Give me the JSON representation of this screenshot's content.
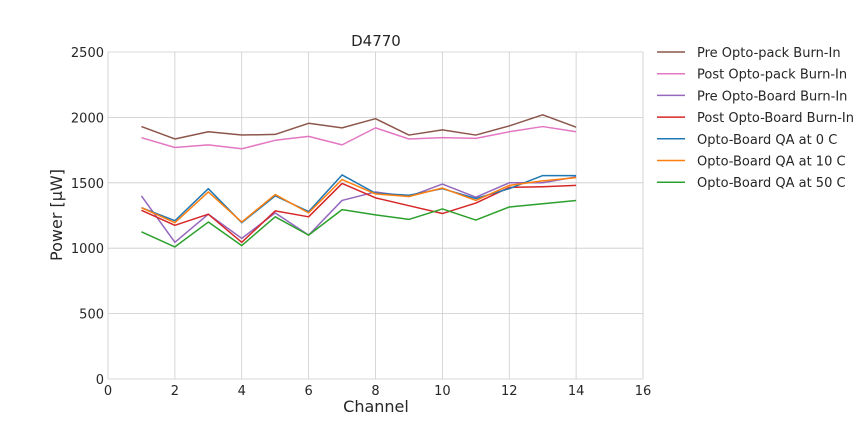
{
  "chart_data": {
    "type": "line",
    "title": "D4770",
    "xlabel": "Channel",
    "ylabel": "Power [μW]",
    "xlim": [
      0,
      16
    ],
    "ylim": [
      0,
      2500
    ],
    "xticks": [
      0,
      2,
      4,
      6,
      8,
      10,
      12,
      14,
      16
    ],
    "yticks": [
      0,
      500,
      1000,
      1500,
      2000,
      2500
    ],
    "grid": true,
    "legend_position": "outside-right",
    "x": [
      1,
      2,
      3,
      4,
      5,
      6,
      7,
      8,
      9,
      10,
      11,
      12,
      13,
      14
    ],
    "series": [
      {
        "name": "Pre Opto-pack Burn-In",
        "color": "#8c564b",
        "values": [
          1930,
          1835,
          1890,
          1865,
          1870,
          1955,
          1920,
          1990,
          1865,
          1905,
          1865,
          1935,
          2020,
          1925
        ]
      },
      {
        "name": "Post Opto-pack Burn-In",
        "color": "#e377c2",
        "values": [
          1845,
          1770,
          1790,
          1760,
          1825,
          1855,
          1790,
          1920,
          1835,
          1845,
          1840,
          1890,
          1930,
          1890
        ]
      },
      {
        "name": "Pre Opto-Board Burn-In",
        "color": "#9467bd",
        "values": [
          1400,
          1045,
          1260,
          1075,
          1270,
          1100,
          1365,
          1430,
          1395,
          1490,
          1390,
          1500,
          1500,
          1545
        ]
      },
      {
        "name": "Post Opto-Board Burn-In",
        "color": "#d62728",
        "values": [
          1290,
          1175,
          1260,
          1045,
          1285,
          1240,
          1495,
          1385,
          1325,
          1265,
          1345,
          1465,
          1470,
          1480
        ]
      },
      {
        "name": "Opto-Board QA at 0 C",
        "color": "#1f77b4",
        "values": [
          1310,
          1210,
          1455,
          1195,
          1400,
          1280,
          1560,
          1420,
          1405,
          1455,
          1380,
          1455,
          1555,
          1555
        ]
      },
      {
        "name": "Opto-Board QA at 10 C",
        "color": "#ff7f0e",
        "values": [
          1310,
          1195,
          1430,
          1200,
          1410,
          1270,
          1525,
          1415,
          1395,
          1460,
          1365,
          1480,
          1515,
          1540
        ]
      },
      {
        "name": "Opto-Board QA at 50 C",
        "color": "#2ca02c",
        "values": [
          1125,
          1010,
          1200,
          1020,
          1240,
          1100,
          1295,
          1255,
          1220,
          1300,
          1215,
          1315,
          1340,
          1365
        ]
      }
    ]
  }
}
